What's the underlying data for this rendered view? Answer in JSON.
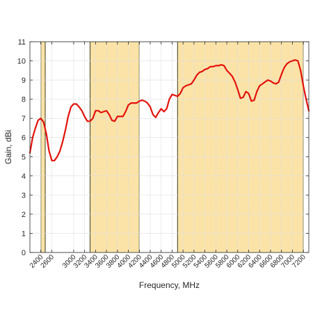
{
  "chart_data": {
    "type": "line",
    "xlabel": "Frequency, MHz",
    "ylabel": "Gain, dBi",
    "xlim": [
      2200,
      7300
    ],
    "ylim": [
      0,
      11
    ],
    "yticks": [
      0,
      1,
      2,
      3,
      4,
      5,
      6,
      7,
      8,
      9,
      10,
      11
    ],
    "xticks": [
      2400,
      2600,
      3000,
      3200,
      3400,
      3600,
      3800,
      4000,
      4200,
      4400,
      4600,
      4800,
      5000,
      5200,
      5400,
      5600,
      5800,
      6000,
      6200,
      6400,
      6600,
      6800,
      7000,
      7200
    ],
    "xtick_labels": [
      "2400",
      "2600",
      "3000",
      "3200",
      "3400",
      "3600",
      "3800",
      "4000",
      "4200",
      "4400",
      "4600",
      "4800",
      "5000",
      "5200",
      "5400",
      "5600",
      "5800",
      "6000",
      "6200",
      "6400",
      "6600",
      "6800",
      "7000",
      "7200"
    ],
    "grid": true,
    "bands": [
      {
        "x0": 2400,
        "x1": 2480
      },
      {
        "x0": 3300,
        "x1": 4200
      },
      {
        "x0": 4900,
        "x1": 7200
      }
    ],
    "band_color": "#fbe3a8",
    "series": [
      {
        "color": "#e3120b",
        "x": [
          2200,
          2250,
          2300,
          2350,
          2400,
          2450,
          2500,
          2550,
          2600,
          2650,
          2700,
          2750,
          2800,
          2850,
          2900,
          2950,
          3000,
          3050,
          3100,
          3150,
          3200,
          3250,
          3300,
          3350,
          3400,
          3450,
          3500,
          3550,
          3600,
          3650,
          3700,
          3750,
          3800,
          3850,
          3900,
          3950,
          4000,
          4050,
          4100,
          4150,
          4200,
          4250,
          4300,
          4350,
          4400,
          4450,
          4500,
          4550,
          4600,
          4650,
          4700,
          4750,
          4800,
          4850,
          4900,
          4950,
          5000,
          5050,
          5100,
          5150,
          5200,
          5250,
          5300,
          5350,
          5400,
          5450,
          5500,
          5550,
          5600,
          5650,
          5700,
          5750,
          5800,
          5850,
          5900,
          5950,
          6000,
          6050,
          6100,
          6150,
          6200,
          6250,
          6300,
          6350,
          6400,
          6450,
          6500,
          6550,
          6600,
          6650,
          6700,
          6750,
          6800,
          6850,
          6900,
          6950,
          7000,
          7050,
          7100,
          7150,
          7200,
          7250,
          7300
        ],
        "y": [
          5.2,
          6.0,
          6.5,
          6.9,
          7.0,
          6.8,
          6.2,
          5.3,
          4.8,
          4.8,
          5.0,
          5.3,
          5.8,
          6.4,
          7.1,
          7.6,
          7.75,
          7.75,
          7.6,
          7.4,
          7.1,
          6.85,
          6.85,
          7.0,
          7.4,
          7.4,
          7.3,
          7.35,
          7.4,
          7.2,
          6.9,
          6.85,
          7.1,
          7.1,
          7.1,
          7.35,
          7.7,
          7.8,
          7.8,
          7.8,
          7.9,
          7.95,
          7.9,
          7.8,
          7.6,
          7.2,
          7.05,
          7.3,
          7.5,
          7.35,
          7.5,
          8.0,
          8.25,
          8.2,
          8.15,
          8.3,
          8.6,
          8.7,
          8.75,
          8.8,
          9.0,
          9.25,
          9.4,
          9.45,
          9.55,
          9.6,
          9.7,
          9.7,
          9.75,
          9.75,
          9.8,
          9.75,
          9.5,
          9.35,
          9.2,
          8.9,
          8.5,
          8.05,
          8.1,
          8.4,
          8.3,
          7.9,
          7.95,
          8.4,
          8.7,
          8.8,
          8.9,
          9.0,
          8.95,
          8.85,
          8.8,
          8.9,
          9.3,
          9.65,
          9.85,
          9.95,
          10.0,
          10.05,
          10.0,
          9.5,
          8.7,
          8.0,
          7.4
        ]
      }
    ]
  }
}
